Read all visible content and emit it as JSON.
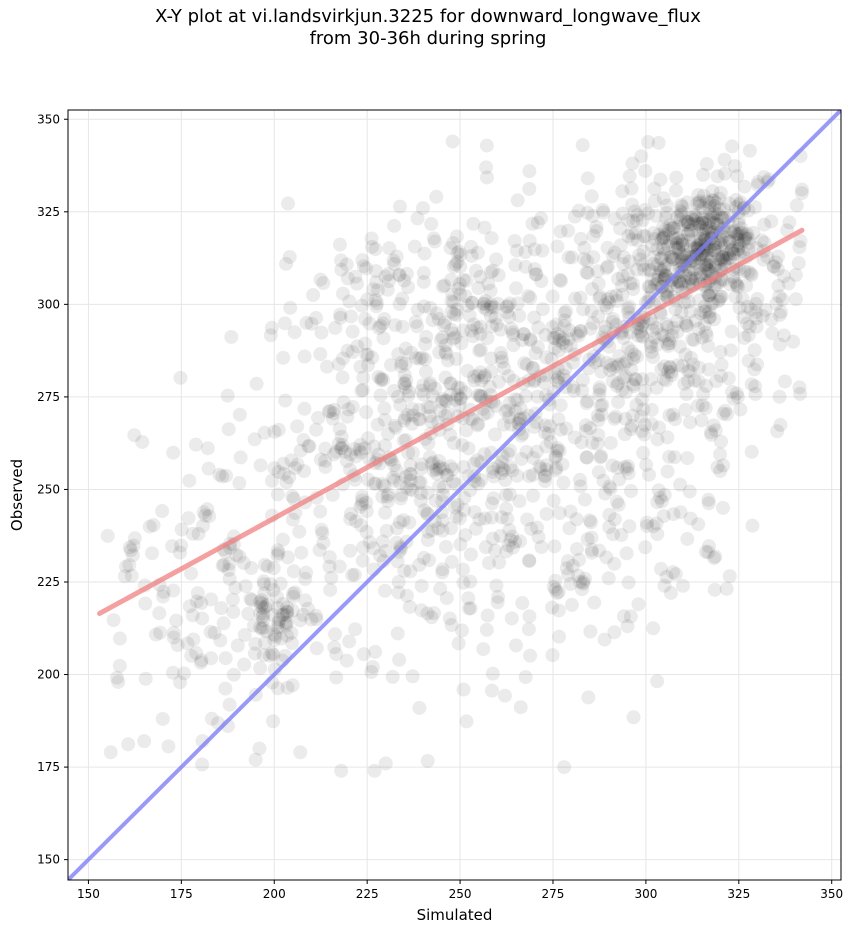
{
  "chart_data": {
    "type": "scatter",
    "title_line1": "X-Y plot at vi.landsvirkjun.3225 for downward_longwave_flux",
    "title_line2": "from 30-36h during spring",
    "xlabel": "Simulated",
    "ylabel": "Observed",
    "xlim": [
      144.5,
      352.5
    ],
    "ylim": [
      144.5,
      352.5
    ],
    "xticks": [
      150,
      175,
      200,
      225,
      250,
      275,
      300,
      325,
      350
    ],
    "yticks": [
      150,
      175,
      200,
      225,
      250,
      275,
      300,
      325,
      350
    ],
    "grid": true,
    "point_color": "#000000",
    "point_alpha": 0.08,
    "regression_line": {
      "color": "#f08080",
      "x": [
        153,
        342
      ],
      "y": [
        216.5,
        320.0
      ]
    },
    "identity_line": {
      "color": "#8080f8",
      "x": [
        144.5,
        352.5
      ],
      "y": [
        144.5,
        352.5
      ]
    },
    "clusters": [
      {
        "cx": 315,
        "cy": 316,
        "sx": 7,
        "sy": 8,
        "n": 260
      },
      {
        "cx": 305,
        "cy": 298,
        "sx": 13,
        "sy": 18,
        "n": 260
      },
      {
        "cx": 280,
        "cy": 290,
        "sx": 22,
        "sy": 22,
        "n": 280
      },
      {
        "cx": 250,
        "cy": 270,
        "sx": 20,
        "sy": 22,
        "n": 300
      },
      {
        "cx": 228,
        "cy": 255,
        "sx": 14,
        "sy": 24,
        "n": 220
      },
      {
        "cx": 200,
        "cy": 216,
        "sx": 5,
        "sy": 7,
        "n": 70
      },
      {
        "cx": 180,
        "cy": 225,
        "sx": 14,
        "sy": 25,
        "n": 140
      },
      {
        "cx": 270,
        "cy": 225,
        "sx": 18,
        "sy": 22,
        "n": 110
      },
      {
        "cx": 330,
        "cy": 310,
        "sx": 9,
        "sy": 18,
        "n": 110
      },
      {
        "cx": 300,
        "cy": 250,
        "sx": 13,
        "sy": 16,
        "n": 80
      },
      {
        "cx": 240,
        "cy": 305,
        "sx": 18,
        "sy": 12,
        "n": 90
      }
    ],
    "points": [
      [
        156,
        179
      ],
      [
        218,
        174
      ],
      [
        227,
        174
      ],
      [
        278,
        175
      ],
      [
        195,
        177
      ],
      [
        196,
        180
      ],
      [
        230,
        176
      ],
      [
        207,
        179
      ],
      [
        248,
        344
      ],
      [
        257,
        337
      ],
      [
        283,
        343
      ],
      [
        152,
        192
      ],
      [
        158,
        198
      ],
      [
        165,
        182
      ],
      [
        170,
        188
      ],
      [
        305,
        224
      ],
      [
        298,
        219
      ],
      [
        282,
        231
      ],
      [
        290,
        226
      ],
      [
        320,
        255
      ],
      [
        342,
        331
      ],
      [
        338,
        320
      ]
    ]
  }
}
